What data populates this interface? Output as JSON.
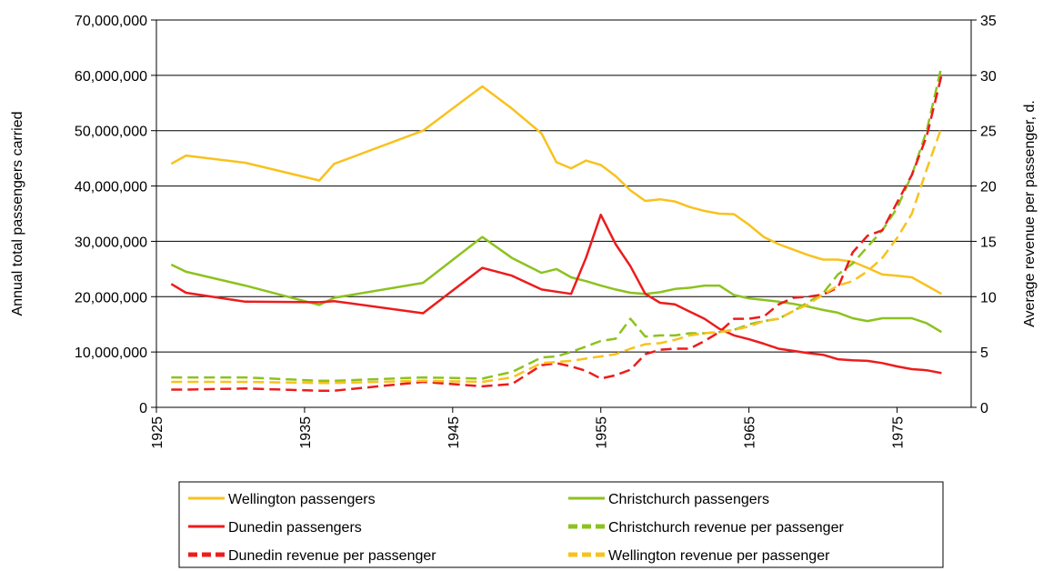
{
  "chart_data": {
    "type": "line",
    "x": [
      1926,
      1927,
      1931,
      1936,
      1937,
      1943,
      1947,
      1949,
      1951,
      1952,
      1953,
      1954,
      1955,
      1956,
      1957,
      1958,
      1959,
      1960,
      1961,
      1962,
      1963,
      1964,
      1965,
      1966,
      1967,
      1968,
      1969,
      1970,
      1971,
      1972,
      1973,
      1974,
      1975,
      1976,
      1977,
      1978
    ],
    "xlim": [
      1925,
      1980
    ],
    "xticks": [
      1925,
      1935,
      1945,
      1955,
      1965,
      1975
    ],
    "ylabel": "Annual total passengers carried",
    "ylim": [
      0,
      70000000
    ],
    "yticks": [
      0,
      {
        "value": 10000000,
        "label": "10,000,000"
      },
      {
        "value": 20000000,
        "label": "20,000,000"
      },
      {
        "value": 30000000,
        "label": "30,000,000"
      },
      {
        "value": 40000000,
        "label": "40,000,000"
      },
      {
        "value": 50000000,
        "label": "50,000,000"
      },
      {
        "value": 60000000,
        "label": "60,000,000"
      },
      {
        "value": 70000000,
        "label": "70,000,000"
      }
    ],
    "y2label": "Average revenue per passenger, d.",
    "y2lim": [
      0,
      35
    ],
    "y2ticks": [
      0,
      5,
      10,
      15,
      20,
      25,
      30,
      35
    ],
    "grid": true,
    "legend": "bottom",
    "series": [
      {
        "name": "Wellington passengers",
        "color": "#F8C21E",
        "style": "solid",
        "values": [
          44000000,
          45500000,
          44200000,
          41000000,
          44000000,
          50000000,
          58000000,
          54000000,
          49500000,
          44300000,
          43200000,
          44600000,
          43800000,
          41800000,
          39200000,
          37300000,
          37600000,
          37200000,
          36200000,
          35500000,
          35000000,
          34900000,
          33000000,
          30800000,
          29500000,
          28500000,
          27500000,
          26700000,
          26700000,
          26300000,
          25200000,
          24000000,
          23800000,
          23500000,
          22000000,
          20500000
        ]
      },
      {
        "name": "Christchurch passengers",
        "color": "#8CC21F",
        "style": "solid",
        "values": [
          25800000,
          24500000,
          22000000,
          18500000,
          19800000,
          22500000,
          30800000,
          27000000,
          24300000,
          25000000,
          23500000,
          22800000,
          22000000,
          21300000,
          20700000,
          20500000,
          20800000,
          21400000,
          21600000,
          22000000,
          22000000,
          20300000,
          19700000,
          19400000,
          19100000,
          18700000,
          18200000,
          17600000,
          17100000,
          16100000,
          15600000,
          16100000,
          16100000,
          16100000,
          15200000,
          13600000
        ]
      },
      {
        "name": "Dunedin passengers",
        "color": "#EC1C1C",
        "style": "solid",
        "values": [
          22300000,
          20700000,
          19100000,
          19000000,
          19200000,
          17000000,
          25200000,
          23800000,
          21300000,
          20900000,
          20500000,
          27000000,
          34800000,
          29500000,
          25500000,
          20500000,
          18900000,
          18600000,
          17300000,
          16000000,
          14200000,
          13000000,
          12300000,
          11500000,
          10600000,
          10200000,
          9800000,
          9500000,
          8700000,
          8500000,
          8400000,
          8000000,
          7400000,
          6900000,
          6700000,
          6200000
        ]
      },
      {
        "name": "Christchurch revenue per passenger",
        "color": "#8CC21F",
        "style": "dashed",
        "axis": "y2",
        "values": [
          2.7,
          2.7,
          2.7,
          2.4,
          2.4,
          2.7,
          2.6,
          3.2,
          4.5,
          4.6,
          5,
          5.5,
          6,
          6.2,
          8,
          6.4,
          6.5,
          6.5,
          6.7,
          6.7,
          6.8,
          7,
          7.5,
          7.8,
          8,
          8.7,
          9.5,
          10.3,
          12,
          13,
          14.5,
          16,
          18,
          21,
          25,
          30.8
        ]
      },
      {
        "name": "Dunedin revenue per passenger",
        "color": "#EC1C1C",
        "style": "dashed",
        "axis": "y2",
        "values": [
          1.6,
          1.6,
          1.7,
          1.5,
          1.5,
          2.3,
          1.9,
          2.1,
          3.8,
          4,
          3.7,
          3.3,
          2.6,
          2.9,
          3.4,
          4.8,
          5.2,
          5.3,
          5.3,
          6,
          6.8,
          8,
          8,
          8.2,
          9.3,
          9.9,
          10,
          10.2,
          10.8,
          14,
          15.5,
          16,
          18.5,
          21,
          24.5,
          30
        ]
      },
      {
        "name": "Wellington revenue per passenger",
        "color": "#F8C21E",
        "style": "dashed",
        "axis": "y2",
        "values": [
          2.3,
          2.3,
          2.3,
          2.2,
          2.2,
          2.4,
          2.3,
          2.7,
          4,
          4.1,
          4.2,
          4.4,
          4.6,
          4.8,
          5.3,
          5.7,
          5.8,
          6.1,
          6.5,
          6.7,
          6.8,
          7,
          7.3,
          7.8,
          8,
          8.7,
          9.3,
          10.2,
          11,
          11.4,
          12.3,
          13.5,
          15.3,
          17.5,
          21.5,
          25.3
        ]
      }
    ]
  }
}
